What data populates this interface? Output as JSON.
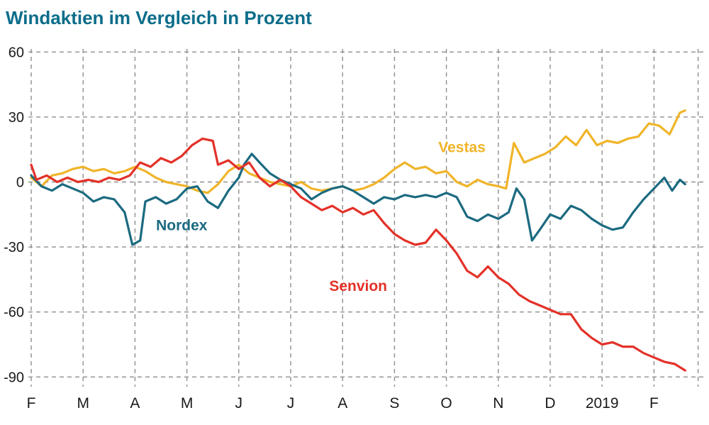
{
  "page": {
    "title": "Windaktien im Vergleich in Prozent"
  },
  "colors": {
    "title": "#0c6d8a",
    "grid": "#8f8f8f",
    "tick_text": "#1a1a1a",
    "background": "#ffffff",
    "vestas": "#f0b429",
    "nordex": "#1b6a80",
    "senvion": "#e33128"
  },
  "chart_data": {
    "type": "line",
    "title": "Windaktien im Vergleich in Prozent",
    "xlabel": "",
    "ylabel": "",
    "x_unit": "months (Feb 2018 - Feb 2019)",
    "y_unit": "percent",
    "x_tick_labels": [
      "F",
      "M",
      "A",
      "M",
      "J",
      "J",
      "A",
      "S",
      "O",
      "N",
      "D",
      "2019",
      "F"
    ],
    "y_ticks": [
      60,
      30,
      0,
      -30,
      -60,
      -90
    ],
    "ylim": [
      -97,
      66
    ],
    "xlim": [
      0,
      12.9
    ],
    "grid": true,
    "legend_position": "inline-labels",
    "series": [
      {
        "name": "Vestas",
        "color": "#f0b429",
        "points": [
          [
            0,
            2
          ],
          [
            0.2,
            -2
          ],
          [
            0.4,
            3
          ],
          [
            0.6,
            4
          ],
          [
            0.8,
            6
          ],
          [
            1,
            7
          ],
          [
            1.2,
            5
          ],
          [
            1.4,
            6
          ],
          [
            1.6,
            4
          ],
          [
            1.8,
            5
          ],
          [
            2,
            7
          ],
          [
            2.2,
            5
          ],
          [
            2.4,
            2
          ],
          [
            2.6,
            0
          ],
          [
            2.8,
            -1
          ],
          [
            3,
            -2
          ],
          [
            3.2,
            -4
          ],
          [
            3.4,
            -5
          ],
          [
            3.6,
            -1
          ],
          [
            3.8,
            5
          ],
          [
            4,
            8
          ],
          [
            4.2,
            4
          ],
          [
            4.4,
            2
          ],
          [
            4.6,
            0
          ],
          [
            4.8,
            -1
          ],
          [
            5,
            -2
          ],
          [
            5.2,
            0
          ],
          [
            5.4,
            -3
          ],
          [
            5.6,
            -4
          ],
          [
            5.8,
            -3
          ],
          [
            6,
            -2
          ],
          [
            6.2,
            -4
          ],
          [
            6.4,
            -3
          ],
          [
            6.6,
            -1
          ],
          [
            6.8,
            2
          ],
          [
            7,
            6
          ],
          [
            7.2,
            9
          ],
          [
            7.4,
            6
          ],
          [
            7.6,
            7
          ],
          [
            7.8,
            4
          ],
          [
            8,
            5
          ],
          [
            8.2,
            0
          ],
          [
            8.4,
            -2
          ],
          [
            8.6,
            1
          ],
          [
            8.8,
            -1
          ],
          [
            9,
            -2
          ],
          [
            9.15,
            -3
          ],
          [
            9.3,
            18
          ],
          [
            9.5,
            9
          ],
          [
            9.7,
            11
          ],
          [
            9.9,
            13
          ],
          [
            10.1,
            16
          ],
          [
            10.3,
            21
          ],
          [
            10.5,
            17
          ],
          [
            10.7,
            24
          ],
          [
            10.9,
            17
          ],
          [
            11.1,
            19
          ],
          [
            11.3,
            18
          ],
          [
            11.5,
            20
          ],
          [
            11.7,
            21
          ],
          [
            11.9,
            27
          ],
          [
            12.1,
            26
          ],
          [
            12.3,
            22
          ],
          [
            12.5,
            32
          ],
          [
            12.6,
            33
          ]
        ]
      },
      {
        "name": "Nordex",
        "color": "#1b6a80",
        "points": [
          [
            0,
            3
          ],
          [
            0.2,
            -2
          ],
          [
            0.4,
            -4
          ],
          [
            0.6,
            -1
          ],
          [
            0.8,
            -3
          ],
          [
            1,
            -5
          ],
          [
            1.2,
            -9
          ],
          [
            1.4,
            -7
          ],
          [
            1.6,
            -8
          ],
          [
            1.8,
            -14
          ],
          [
            1.95,
            -29
          ],
          [
            2.1,
            -27
          ],
          [
            2.2,
            -9
          ],
          [
            2.4,
            -7
          ],
          [
            2.6,
            -10
          ],
          [
            2.8,
            -8
          ],
          [
            3,
            -3
          ],
          [
            3.2,
            -2
          ],
          [
            3.4,
            -9
          ],
          [
            3.6,
            -12
          ],
          [
            3.8,
            -4
          ],
          [
            4,
            2
          ],
          [
            4.1,
            8
          ],
          [
            4.25,
            13
          ],
          [
            4.4,
            9
          ],
          [
            4.6,
            4
          ],
          [
            4.8,
            1
          ],
          [
            5,
            -1
          ],
          [
            5.2,
            -3
          ],
          [
            5.4,
            -8
          ],
          [
            5.6,
            -5
          ],
          [
            5.8,
            -3
          ],
          [
            6,
            -2
          ],
          [
            6.2,
            -4
          ],
          [
            6.4,
            -7
          ],
          [
            6.6,
            -10
          ],
          [
            6.8,
            -7
          ],
          [
            7,
            -8
          ],
          [
            7.2,
            -6
          ],
          [
            7.4,
            -7
          ],
          [
            7.6,
            -6
          ],
          [
            7.8,
            -7
          ],
          [
            8,
            -5
          ],
          [
            8.2,
            -7
          ],
          [
            8.4,
            -16
          ],
          [
            8.6,
            -18
          ],
          [
            8.8,
            -15
          ],
          [
            9,
            -17
          ],
          [
            9.2,
            -14
          ],
          [
            9.35,
            -3
          ],
          [
            9.5,
            -8
          ],
          [
            9.65,
            -27
          ],
          [
            9.8,
            -22
          ],
          [
            10,
            -15
          ],
          [
            10.2,
            -17
          ],
          [
            10.4,
            -11
          ],
          [
            10.6,
            -13
          ],
          [
            10.8,
            -17
          ],
          [
            11,
            -20
          ],
          [
            11.2,
            -22
          ],
          [
            11.4,
            -21
          ],
          [
            11.6,
            -14
          ],
          [
            11.8,
            -8
          ],
          [
            12,
            -3
          ],
          [
            12.2,
            2
          ],
          [
            12.35,
            -4
          ],
          [
            12.5,
            1
          ],
          [
            12.6,
            -1
          ]
        ]
      },
      {
        "name": "Senvion",
        "color": "#e33128",
        "points": [
          [
            0,
            8
          ],
          [
            0.1,
            1
          ],
          [
            0.3,
            3
          ],
          [
            0.5,
            0
          ],
          [
            0.7,
            2
          ],
          [
            0.9,
            0
          ],
          [
            1.1,
            1
          ],
          [
            1.3,
            0
          ],
          [
            1.5,
            2
          ],
          [
            1.7,
            1
          ],
          [
            1.9,
            3
          ],
          [
            2.1,
            9
          ],
          [
            2.3,
            7
          ],
          [
            2.5,
            11
          ],
          [
            2.7,
            9
          ],
          [
            2.9,
            12
          ],
          [
            3.1,
            17
          ],
          [
            3.3,
            20
          ],
          [
            3.5,
            19
          ],
          [
            3.6,
            8
          ],
          [
            3.8,
            10
          ],
          [
            4,
            6
          ],
          [
            4.2,
            9
          ],
          [
            4.4,
            2
          ],
          [
            4.6,
            -2
          ],
          [
            4.8,
            1
          ],
          [
            5,
            -2
          ],
          [
            5.2,
            -7
          ],
          [
            5.4,
            -10
          ],
          [
            5.6,
            -13
          ],
          [
            5.8,
            -11
          ],
          [
            6,
            -14
          ],
          [
            6.2,
            -12
          ],
          [
            6.4,
            -15
          ],
          [
            6.6,
            -13
          ],
          [
            6.8,
            -19
          ],
          [
            7,
            -24
          ],
          [
            7.2,
            -27
          ],
          [
            7.4,
            -29
          ],
          [
            7.6,
            -28
          ],
          [
            7.8,
            -22
          ],
          [
            8,
            -27
          ],
          [
            8.2,
            -33
          ],
          [
            8.4,
            -41
          ],
          [
            8.6,
            -44
          ],
          [
            8.8,
            -39
          ],
          [
            9,
            -44
          ],
          [
            9.2,
            -47
          ],
          [
            9.4,
            -52
          ],
          [
            9.6,
            -55
          ],
          [
            9.8,
            -57
          ],
          [
            10,
            -59
          ],
          [
            10.2,
            -61
          ],
          [
            10.4,
            -61
          ],
          [
            10.6,
            -68
          ],
          [
            10.8,
            -72
          ],
          [
            11,
            -75
          ],
          [
            11.2,
            -74
          ],
          [
            11.4,
            -76
          ],
          [
            11.6,
            -76
          ],
          [
            11.8,
            -79
          ],
          [
            12,
            -81
          ],
          [
            12.2,
            -83
          ],
          [
            12.4,
            -84
          ],
          [
            12.6,
            -87
          ]
        ]
      }
    ],
    "annotations": [
      {
        "text": "Vestas",
        "x": 8.3,
        "y": 16,
        "color": "#f0b429"
      },
      {
        "text": "Nordex",
        "x": 2.9,
        "y": -20,
        "color": "#1b6a80"
      },
      {
        "text": "Senvion",
        "x": 6.3,
        "y": -48,
        "color": "#e33128"
      }
    ]
  }
}
